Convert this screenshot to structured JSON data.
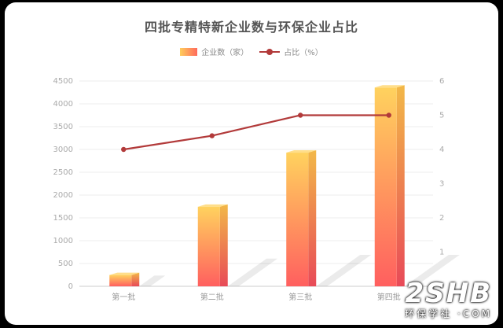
{
  "chart_data": {
    "type": "bar",
    "title": "四批专精特新企业数与环保企业占比",
    "categories": [
      "第一批",
      "第二批",
      "第三批",
      "第四批"
    ],
    "series": [
      {
        "name": "企业数（家）",
        "type": "bar",
        "axis": "left",
        "values": [
          248,
          1744,
          2930,
          4357
        ]
      },
      {
        "name": "占比（%）",
        "type": "line",
        "axis": "right",
        "values": [
          4.0,
          4.4,
          5.0,
          5.0
        ]
      }
    ],
    "yleft_ticks": [
      "0",
      "500",
      "1000",
      "1500",
      "2000",
      "2500",
      "3000",
      "3500",
      "4000",
      "4500"
    ],
    "yright_ticks": [
      "0",
      "1",
      "2",
      "3",
      "4",
      "5",
      "6"
    ],
    "ylim_left": [
      0,
      4500
    ],
    "ylim_right": [
      0,
      6
    ],
    "legend": "top-center",
    "grid": true,
    "colors": {
      "bar_top": "#ffd25e",
      "bar_bottom": "#ff5f5f",
      "line": "#b23a3a"
    }
  },
  "watermark": {
    "logo": "2SHB",
    "text": "环保学社 ·COM"
  }
}
